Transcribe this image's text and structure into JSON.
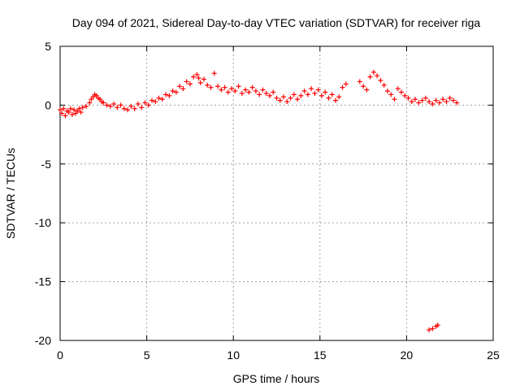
{
  "chart_data": {
    "type": "scatter",
    "title": "Day 094 of 2021, Sidereal Day-to-day VTEC variation (SDTVAR) for receiver riga",
    "xlabel": "GPS time / hours",
    "ylabel": "SDTVAR / TECUs",
    "xlim": [
      0,
      25
    ],
    "ylim": [
      -20,
      5
    ],
    "xticks": [
      0,
      5,
      10,
      15,
      20,
      25
    ],
    "yticks": [
      5,
      0,
      -5,
      -10,
      -15,
      -20
    ],
    "grid": true,
    "marker": "+",
    "series": [
      {
        "name": "SDTVAR",
        "color": "#ff0000",
        "points": [
          [
            0.0,
            -0.4
          ],
          [
            0.1,
            -0.7
          ],
          [
            0.2,
            -0.3
          ],
          [
            0.3,
            -0.9
          ],
          [
            0.4,
            -0.5
          ],
          [
            0.5,
            -0.6
          ],
          [
            0.6,
            -0.3
          ],
          [
            0.7,
            -0.8
          ],
          [
            0.8,
            -0.4
          ],
          [
            0.9,
            -0.7
          ],
          [
            1.0,
            -0.5
          ],
          [
            1.1,
            -0.3
          ],
          [
            1.2,
            -0.6
          ],
          [
            1.3,
            -0.2
          ],
          [
            1.5,
            -0.1
          ],
          [
            1.7,
            0.2
          ],
          [
            1.8,
            0.5
          ],
          [
            1.9,
            0.7
          ],
          [
            2.0,
            0.9
          ],
          [
            2.1,
            0.8
          ],
          [
            2.2,
            0.6
          ],
          [
            2.3,
            0.5
          ],
          [
            2.4,
            0.3
          ],
          [
            2.5,
            0.2
          ],
          [
            2.7,
            0.0
          ],
          [
            2.9,
            -0.1
          ],
          [
            3.1,
            0.1
          ],
          [
            3.3,
            -0.2
          ],
          [
            3.5,
            0.0
          ],
          [
            3.7,
            -0.3
          ],
          [
            3.9,
            -0.4
          ],
          [
            4.1,
            -0.1
          ],
          [
            4.3,
            -0.3
          ],
          [
            4.5,
            0.1
          ],
          [
            4.7,
            -0.2
          ],
          [
            4.9,
            0.2
          ],
          [
            5.1,
            0.0
          ],
          [
            5.3,
            0.4
          ],
          [
            5.5,
            0.3
          ],
          [
            5.7,
            0.6
          ],
          [
            5.9,
            0.5
          ],
          [
            6.1,
            0.9
          ],
          [
            6.3,
            0.8
          ],
          [
            6.5,
            1.2
          ],
          [
            6.7,
            1.1
          ],
          [
            6.9,
            1.6
          ],
          [
            7.1,
            1.4
          ],
          [
            7.3,
            2.0
          ],
          [
            7.5,
            1.8
          ],
          [
            7.7,
            2.4
          ],
          [
            7.9,
            2.6
          ],
          [
            8.0,
            2.3
          ],
          [
            8.1,
            1.9
          ],
          [
            8.3,
            2.2
          ],
          [
            8.5,
            1.7
          ],
          [
            8.7,
            1.5
          ],
          [
            8.9,
            2.7
          ],
          [
            9.1,
            1.6
          ],
          [
            9.3,
            1.3
          ],
          [
            9.5,
            1.5
          ],
          [
            9.7,
            1.1
          ],
          [
            9.9,
            1.4
          ],
          [
            10.1,
            1.2
          ],
          [
            10.3,
            1.6
          ],
          [
            10.5,
            1.0
          ],
          [
            10.7,
            1.3
          ],
          [
            10.9,
            1.1
          ],
          [
            11.1,
            1.5
          ],
          [
            11.3,
            1.2
          ],
          [
            11.5,
            0.9
          ],
          [
            11.7,
            1.3
          ],
          [
            11.9,
            1.0
          ],
          [
            12.1,
            0.8
          ],
          [
            12.3,
            1.1
          ],
          [
            12.5,
            0.6
          ],
          [
            12.7,
            0.4
          ],
          [
            12.9,
            0.7
          ],
          [
            13.1,
            0.3
          ],
          [
            13.3,
            0.6
          ],
          [
            13.5,
            0.9
          ],
          [
            13.7,
            0.5
          ],
          [
            13.9,
            0.8
          ],
          [
            14.1,
            1.2
          ],
          [
            14.3,
            0.9
          ],
          [
            14.5,
            1.4
          ],
          [
            14.7,
            1.0
          ],
          [
            14.9,
            1.3
          ],
          [
            15.1,
            0.8
          ],
          [
            15.3,
            1.1
          ],
          [
            15.5,
            0.6
          ],
          [
            15.7,
            0.9
          ],
          [
            15.9,
            0.4
          ],
          [
            16.1,
            0.7
          ],
          [
            16.3,
            1.5
          ],
          [
            16.5,
            1.8
          ],
          [
            17.3,
            2.0
          ],
          [
            17.5,
            1.6
          ],
          [
            17.7,
            1.3
          ],
          [
            17.9,
            2.4
          ],
          [
            18.1,
            2.8
          ],
          [
            18.3,
            2.5
          ],
          [
            18.5,
            2.1
          ],
          [
            18.7,
            1.7
          ],
          [
            18.9,
            1.2
          ],
          [
            19.1,
            0.9
          ],
          [
            19.3,
            0.5
          ],
          [
            19.5,
            1.4
          ],
          [
            19.7,
            1.1
          ],
          [
            19.9,
            0.8
          ],
          [
            20.1,
            0.6
          ],
          [
            20.3,
            0.3
          ],
          [
            20.5,
            0.5
          ],
          [
            20.7,
            0.2
          ],
          [
            20.9,
            0.4
          ],
          [
            21.1,
            0.6
          ],
          [
            21.3,
            0.3
          ],
          [
            21.5,
            0.1
          ],
          [
            21.7,
            0.4
          ],
          [
            21.9,
            0.2
          ],
          [
            22.1,
            0.5
          ],
          [
            22.3,
            0.3
          ],
          [
            22.5,
            0.6
          ],
          [
            22.7,
            0.4
          ],
          [
            22.9,
            0.2
          ],
          [
            21.3,
            -19.1
          ],
          [
            21.5,
            -19.0
          ],
          [
            21.7,
            -18.8
          ],
          [
            21.8,
            -18.7
          ]
        ]
      }
    ]
  }
}
